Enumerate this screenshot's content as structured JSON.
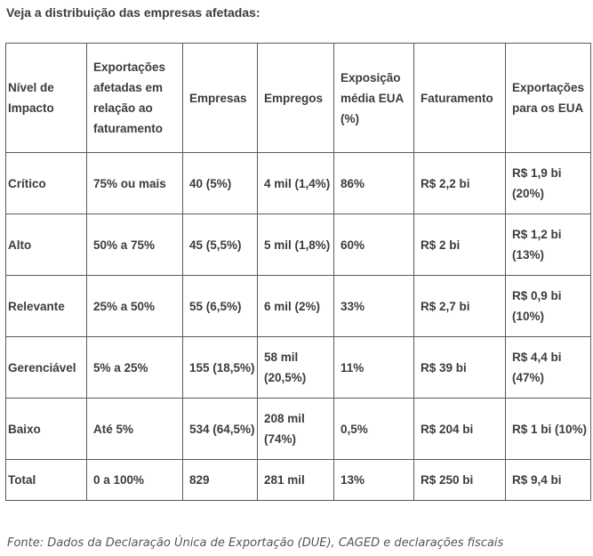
{
  "heading": "Veja a distribuição das empresas afetadas:",
  "table": {
    "headers": [
      "Nível de Impacto",
      "Exportações afetadas em relação ao faturamento",
      "Empresas",
      "Empregos",
      "Exposição média EUA (%)",
      "Faturamento",
      "Exportações para os EUA"
    ],
    "rows": [
      [
        "Crítico",
        "75% ou mais",
        "40 (5%)",
        "4 mil (1,4%)",
        "86%",
        "R$ 2,2 bi",
        "R$ 1,9 bi (20%)"
      ],
      [
        "Alto",
        "50% a 75%",
        "45 (5,5%)",
        "5 mil (1,8%)",
        "60%",
        "R$ 2 bi",
        "R$ 1,2 bi (13%)"
      ],
      [
        "Relevante",
        "25% a 50%",
        "55 (6,5%)",
        "6 mil (2%)",
        "33%",
        "R$ 2,7 bi",
        "R$ 0,9 bi (10%)"
      ],
      [
        "Gerenciável",
        "5% a 25%",
        "155 (18,5%)",
        "58 mil (20,5%)",
        "11%",
        "R$ 39 bi",
        "R$ 4,4 bi (47%)"
      ],
      [
        "Baixo",
        "Até 5%",
        "534 (64,5%)",
        "208 mil (74%)",
        "0,5%",
        "R$ 204 bi",
        "R$ 1 bi (10%)"
      ],
      [
        "Total",
        "0 a 100%",
        "829",
        "281 mil",
        "13%",
        "R$ 250 bi",
        "R$ 9,4 bi"
      ]
    ]
  },
  "source": "Fonte: Dados da Declaração Única de Exportação (DUE), CAGED e declarações fiscais"
}
